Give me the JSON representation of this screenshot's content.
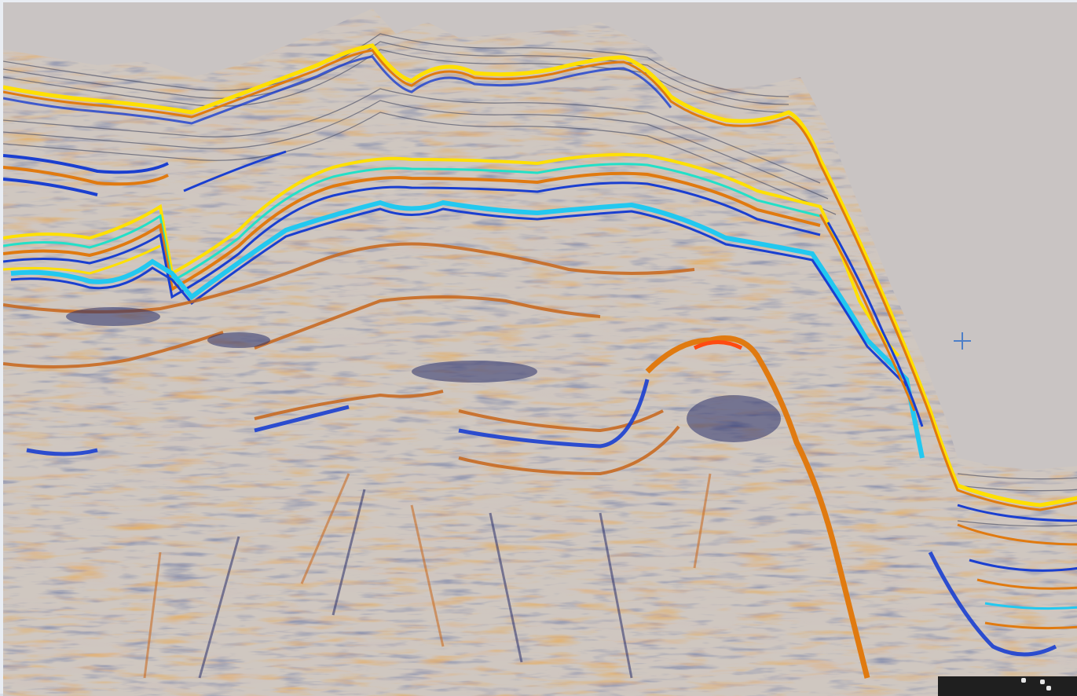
{
  "image": {
    "subject": "seismic-section",
    "background_color": "#c9c4c3",
    "horizon_colors": {
      "yellow": "#ffe000",
      "orange": "#e07a10",
      "blue": "#1a3fd0",
      "cyan": "#22c8f0",
      "dark": "#3a3f5a"
    }
  },
  "overlay": {
    "cursor_icon": "crosshair-icon"
  }
}
